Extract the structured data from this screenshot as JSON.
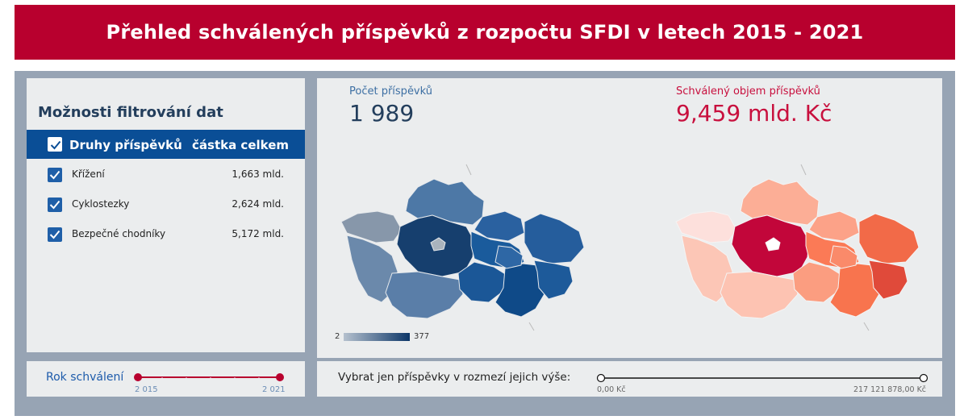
{
  "header": {
    "title": "Přehled schválených příspěvků z rozpočtu SFDI v letech 2015 - 2021"
  },
  "filters": {
    "title": "Možnosti filtrování dat",
    "header_col1": "Druhy příspěvků",
    "header_col2": "částka celkem",
    "items": [
      {
        "label": "Křížení",
        "amount": "1,663 mld.",
        "checked": true
      },
      {
        "label": "Cyklostezky",
        "amount": "2,624 mld.",
        "checked": true
      },
      {
        "label": "Bezpečné chodníky",
        "amount": "5,172 mld.",
        "checked": true
      }
    ]
  },
  "year_filter": {
    "label": "Rok schválení",
    "start": "2 015",
    "end": "2 021"
  },
  "kpi": {
    "count_label": "Počet příspěvků",
    "count_value": "1 989",
    "volume_label": "Schválený objem příspěvků",
    "volume_value": "9,459 mld. Kč"
  },
  "legend": {
    "min": "2",
    "max": "377"
  },
  "range_filter": {
    "label": "Vybrat jen příspěvky v rozmezí jejich výše:",
    "min": "0,00 Kč",
    "max": "217 121 878,00 Kč"
  },
  "colors": {
    "accent_red": "#b8002e",
    "header_blue": "#0a4e96",
    "kpi_blue": "#233e5c",
    "kpi_red": "#c8103e"
  }
}
